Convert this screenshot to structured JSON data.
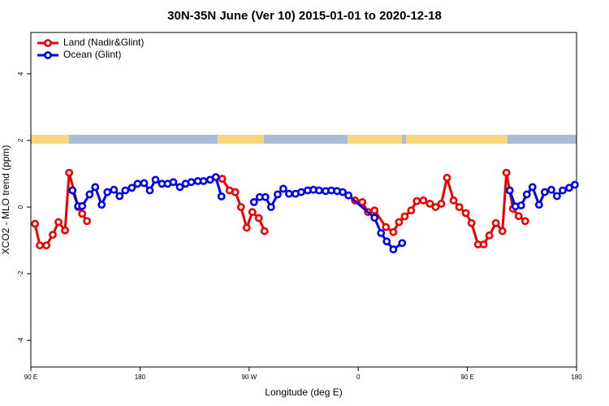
{
  "chart_data": {
    "type": "line",
    "title": "30N-35N June (Ver 10)   2015-01-01 to 2020-12-18",
    "x_label": "Longitude (deg E)",
    "y_label": "XCO2 - MLO trend (ppm)",
    "xlim": [
      90,
      540
    ],
    "xticks": [
      {
        "value": 90,
        "label": "90 E"
      },
      180,
      {
        "value": 270,
        "label": "90 W"
      },
      {
        "value": 360,
        "label": "0"
      },
      {
        "value": 450,
        "label": "90 E"
      },
      {
        "value": 540,
        "label": "180"
      }
    ],
    "ylim": [
      -4.8,
      5.24
    ],
    "yticks": [
      -4,
      -2,
      0,
      2,
      4
    ],
    "legend": "top-left",
    "series": [
      {
        "name": "Land (Nadir&Glint)",
        "color": "#ee0000",
        "x": [
          93.4,
          97.4,
          102.8,
          108.1,
          112.8,
          118.2,
          121.6,
          129.0,
          132.3,
          136.3,
          null,
          247.8,
          253.9,
          258.6,
          263.3,
          268.0,
          272.7,
          278.0,
          282.7,
          null,
          357.3,
          363.3,
          368.0,
          373.4,
          382.8,
          388.9,
          393.6,
          398.3,
          403.6,
          408.3,
          413.7,
          419.1,
          423.8,
          428.5,
          433.2,
          438.6,
          443.3,
          448.7,
          453.4,
          458.8,
          463.4,
          468.1,
          473.5,
          478.9,
          482.2,
          487.6,
          492.3,
          497.7
        ],
        "values": [
          -0.5,
          -1.15,
          -1.15,
          -0.83,
          -0.45,
          -0.7,
          1.03,
          0.0,
          -0.2,
          -0.42,
          null,
          0.85,
          0.5,
          0.45,
          0.0,
          -0.62,
          -0.15,
          -0.33,
          -0.72,
          null,
          0.2,
          0.15,
          -0.15,
          -0.1,
          -0.6,
          -0.75,
          -0.45,
          -0.28,
          -0.1,
          0.18,
          0.2,
          0.1,
          0.0,
          0.1,
          0.88,
          0.2,
          0.0,
          -0.18,
          -0.48,
          -1.12,
          -1.12,
          -0.85,
          -0.48,
          -0.72,
          1.03,
          -0.05,
          -0.27,
          -0.42
        ]
      },
      {
        "name": "Ocean (Glint)",
        "color": "#0000ee",
        "x": [
          124.3,
          129.0,
          132.3,
          138.4,
          143.1,
          148.4,
          153.1,
          158.5,
          163.2,
          167.9,
          173.3,
          178.0,
          183.4,
          188.1,
          192.8,
          198.1,
          202.8,
          207.5,
          212.9,
          217.6,
          222.3,
          227.7,
          232.4,
          237.8,
          242.5,
          247.2,
          null,
          274.0,
          278.7,
          283.4,
          288.1,
          293.5,
          298.2,
          302.9,
          308.3,
          313.0,
          318.3,
          323.0,
          327.7,
          333.1,
          337.8,
          342.5,
          347.2,
          351.9,
          373.4,
          378.8,
          383.5,
          388.9,
          396.2,
          null,
          484.9,
          489.6,
          494.3,
          499.0,
          503.7,
          509.1,
          513.8,
          519.2,
          523.9,
          528.6,
          534.0,
          538.6
        ],
        "values": [
          0.5,
          0.03,
          0.03,
          0.38,
          0.6,
          0.07,
          0.45,
          0.52,
          0.33,
          0.5,
          0.58,
          0.7,
          0.72,
          0.5,
          0.82,
          0.7,
          0.7,
          0.75,
          0.6,
          0.7,
          0.75,
          0.78,
          0.78,
          0.82,
          0.9,
          0.32,
          null,
          0.15,
          0.3,
          0.3,
          0.0,
          0.38,
          0.55,
          0.4,
          0.4,
          0.45,
          0.5,
          0.52,
          0.5,
          0.48,
          0.5,
          0.48,
          0.45,
          0.35,
          -0.32,
          -0.78,
          -1.03,
          -1.27,
          -1.08,
          null,
          0.5,
          0.02,
          0.05,
          0.38,
          0.6,
          0.07,
          0.45,
          0.52,
          0.33,
          0.5,
          0.58,
          0.67
        ]
      }
    ]
  }
}
